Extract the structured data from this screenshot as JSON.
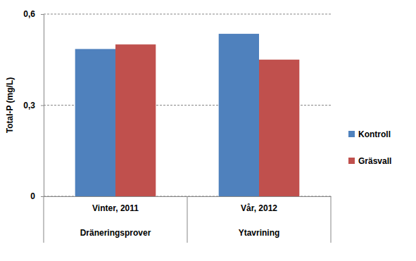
{
  "chart_data": {
    "type": "bar",
    "y_label": "Total-P (mg/L)",
    "categories": [
      "Vinter, 2011",
      "Vår, 2012"
    ],
    "category_groups": [
      "Dräneringsprover",
      "Ytavrining"
    ],
    "series": [
      {
        "name": "Kontroll",
        "color": "#4f81bd",
        "values": [
          0.485,
          0.535
        ]
      },
      {
        "name": "Gräsvall",
        "color": "#c0504d",
        "values": [
          0.5,
          0.45
        ]
      }
    ],
    "ylim": [
      0,
      0.6
    ],
    "yticks": [
      0,
      {
        "value": 0.3,
        "label": "0,3"
      },
      {
        "value": 0.6,
        "label": "0,6"
      }
    ],
    "grid": true,
    "legend": "right"
  }
}
